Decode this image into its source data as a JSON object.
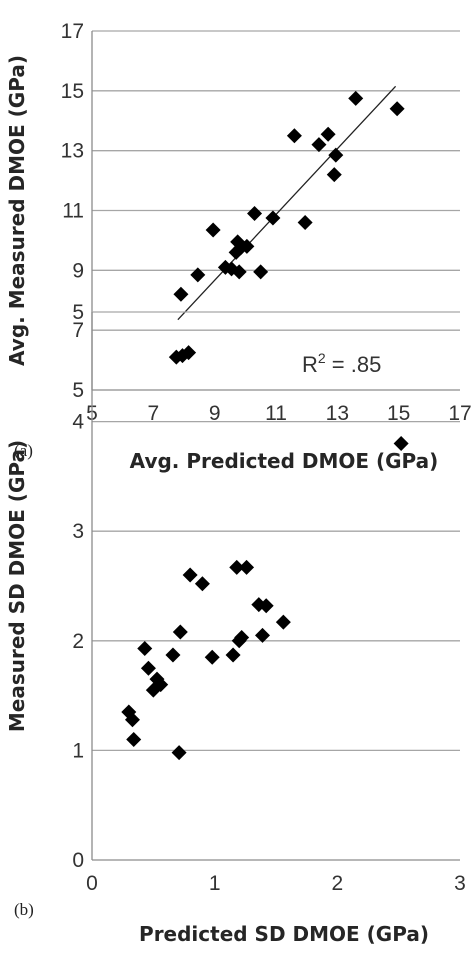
{
  "chart_data": [
    {
      "type": "scatter",
      "panel_label": "(a)",
      "xlabel": "Avg. Predicted DMOE (GPa)",
      "ylabel": "Avg. Measured DMOE (GPa)",
      "xlim": [
        5,
        17
      ],
      "ylim": [
        5,
        17
      ],
      "xticks": [
        5,
        7,
        9,
        11,
        13,
        15,
        17
      ],
      "yticks": [
        5,
        7,
        9,
        11,
        13,
        15,
        17
      ],
      "grid": "horizontal",
      "annotation": {
        "text": "R",
        "sup": "2",
        "rest": " = .85"
      },
      "trendline": {
        "x": [
          7.8,
          14.9
        ],
        "y": [
          7.35,
          15.15
        ]
      },
      "points": [
        {
          "x": 7.75,
          "y": 6.1
        },
        {
          "x": 7.95,
          "y": 6.15
        },
        {
          "x": 8.15,
          "y": 6.25
        },
        {
          "x": 7.9,
          "y": 8.2
        },
        {
          "x": 8.45,
          "y": 8.85
        },
        {
          "x": 8.95,
          "y": 10.35
        },
        {
          "x": 9.35,
          "y": 9.1
        },
        {
          "x": 9.55,
          "y": 9.05
        },
        {
          "x": 9.75,
          "y": 9.95
        },
        {
          "x": 9.7,
          "y": 9.6
        },
        {
          "x": 9.85,
          "y": 9.75
        },
        {
          "x": 10.05,
          "y": 9.8
        },
        {
          "x": 9.8,
          "y": 8.95
        },
        {
          "x": 10.5,
          "y": 8.95
        },
        {
          "x": 10.3,
          "y": 10.9
        },
        {
          "x": 10.9,
          "y": 10.75
        },
        {
          "x": 11.6,
          "y": 13.5
        },
        {
          "x": 11.95,
          "y": 10.6
        },
        {
          "x": 12.4,
          "y": 13.2
        },
        {
          "x": 12.7,
          "y": 13.55
        },
        {
          "x": 12.95,
          "y": 12.85
        },
        {
          "x": 12.9,
          "y": 12.2
        },
        {
          "x": 13.6,
          "y": 14.75
        },
        {
          "x": 14.95,
          "y": 14.4
        }
      ]
    },
    {
      "type": "scatter",
      "panel_label": "(b)",
      "xlabel": "Predicted SD DMOE (GPa)",
      "ylabel": "Measured SD DMOE (GPa)",
      "xlim": [
        0,
        3
      ],
      "ylim": [
        0,
        5
      ],
      "xticks": [
        0,
        1,
        2,
        3
      ],
      "yticks": [
        0,
        1,
        2,
        3,
        4,
        5
      ],
      "grid": "horizontal",
      "points": [
        {
          "x": 0.3,
          "y": 1.35
        },
        {
          "x": 0.33,
          "y": 1.28
        },
        {
          "x": 0.34,
          "y": 1.1
        },
        {
          "x": 0.43,
          "y": 1.93
        },
        {
          "x": 0.46,
          "y": 1.75
        },
        {
          "x": 0.5,
          "y": 1.55
        },
        {
          "x": 0.53,
          "y": 1.65
        },
        {
          "x": 0.56,
          "y": 1.6
        },
        {
          "x": 0.66,
          "y": 1.87
        },
        {
          "x": 0.71,
          "y": 0.98
        },
        {
          "x": 0.72,
          "y": 2.08
        },
        {
          "x": 0.8,
          "y": 2.6
        },
        {
          "x": 0.9,
          "y": 2.52
        },
        {
          "x": 0.98,
          "y": 1.85
        },
        {
          "x": 1.15,
          "y": 1.87
        },
        {
          "x": 1.18,
          "y": 2.67
        },
        {
          "x": 1.2,
          "y": 2.0
        },
        {
          "x": 1.22,
          "y": 2.03
        },
        {
          "x": 1.26,
          "y": 2.67
        },
        {
          "x": 1.36,
          "y": 2.33
        },
        {
          "x": 1.39,
          "y": 2.05
        },
        {
          "x": 1.42,
          "y": 2.32
        },
        {
          "x": 1.56,
          "y": 2.17
        },
        {
          "x": 2.52,
          "y": 3.8
        }
      ]
    }
  ]
}
